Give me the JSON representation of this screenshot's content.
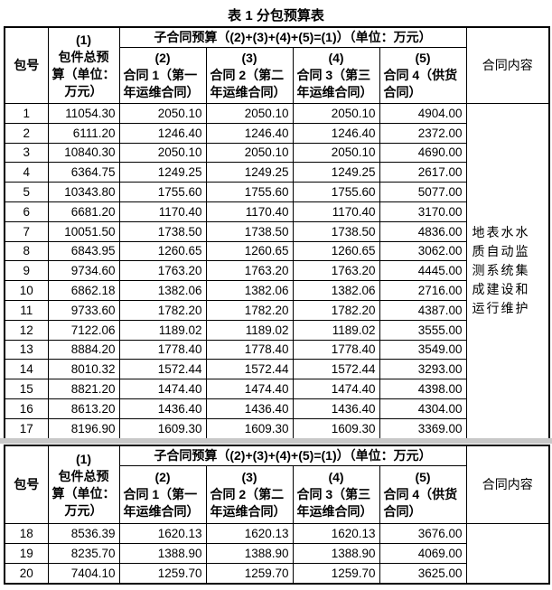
{
  "title": "表 1  分包预算表",
  "header": {
    "pkg": "包号",
    "total": [
      "(1)",
      "包件总预",
      "算（单位：",
      "万元）"
    ],
    "group": "子合同预算（(2)+(3)+(4)+(5)=(1)）（单位：万元）",
    "subs": [
      [
        "(2)",
        "合同 1（第一",
        "年运维合同）"
      ],
      [
        "(3)",
        "合同 2（第二",
        "年运维合同）"
      ],
      [
        "(4)",
        "合同 3（第三",
        "年运维合同）"
      ],
      [
        "(5)",
        "合同 4（供货",
        "合同）"
      ]
    ],
    "content": "合同内容"
  },
  "content_text": "地表水水质自动监测系统集成建设和运行维护",
  "rows": [
    [
      "1",
      "11054.30",
      "2050.10",
      "2050.10",
      "2050.10",
      "4904.00"
    ],
    [
      "2",
      "6111.20",
      "1246.40",
      "1246.40",
      "1246.40",
      "2372.00"
    ],
    [
      "3",
      "10840.30",
      "2050.10",
      "2050.10",
      "2050.10",
      "4690.00"
    ],
    [
      "4",
      "6364.75",
      "1249.25",
      "1249.25",
      "1249.25",
      "2617.00"
    ],
    [
      "5",
      "10343.80",
      "1755.60",
      "1755.60",
      "1755.60",
      "5077.00"
    ],
    [
      "6",
      "6681.20",
      "1170.40",
      "1170.40",
      "1170.40",
      "3170.00"
    ],
    [
      "7",
      "10051.50",
      "1738.50",
      "1738.50",
      "1738.50",
      "4836.00"
    ],
    [
      "8",
      "6843.95",
      "1260.65",
      "1260.65",
      "1260.65",
      "3062.00"
    ],
    [
      "9",
      "9734.60",
      "1763.20",
      "1763.20",
      "1763.20",
      "4445.00"
    ],
    [
      "10",
      "6862.18",
      "1382.06",
      "1382.06",
      "1382.06",
      "2716.00"
    ],
    [
      "11",
      "9733.60",
      "1782.20",
      "1782.20",
      "1782.20",
      "4387.00"
    ],
    [
      "12",
      "7122.06",
      "1189.02",
      "1189.02",
      "1189.02",
      "3555.00"
    ],
    [
      "13",
      "8884.20",
      "1778.40",
      "1778.40",
      "1778.40",
      "3549.00"
    ],
    [
      "14",
      "8010.32",
      "1572.44",
      "1572.44",
      "1572.44",
      "3293.00"
    ],
    [
      "15",
      "8821.20",
      "1474.40",
      "1474.40",
      "1474.40",
      "4398.00"
    ],
    [
      "16",
      "8613.20",
      "1436.40",
      "1436.40",
      "1436.40",
      "4304.00"
    ],
    [
      "17",
      "8196.90",
      "1609.30",
      "1609.30",
      "1609.30",
      "3369.00"
    ]
  ],
  "rows2": [
    [
      "18",
      "8536.39",
      "1620.13",
      "1620.13",
      "1620.13",
      "3676.00"
    ],
    [
      "19",
      "8235.70",
      "1388.90",
      "1388.90",
      "1388.90",
      "4069.00"
    ],
    [
      "20",
      "7404.10",
      "1259.70",
      "1259.70",
      "1259.70",
      "3625.00"
    ]
  ]
}
